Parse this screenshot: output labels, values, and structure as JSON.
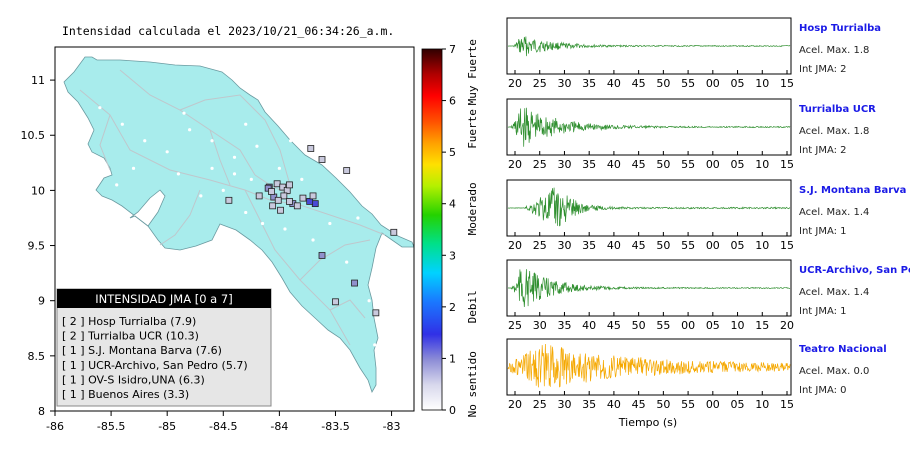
{
  "chart_data": [
    {
      "type": "map",
      "title": "Intensidad calculada el 2023/10/21_06:34:26_a.m.",
      "x_ticks": [
        "-86",
        "-85.5",
        "-85",
        "-84.5",
        "-84",
        "-83.5",
        "-83"
      ],
      "xlim": [
        -86,
        -82.8
      ],
      "y_ticks": [
        "8",
        "8.5",
        "9",
        "9.5",
        "10",
        "10.5",
        "11"
      ],
      "ylim": [
        8,
        11.3
      ],
      "colorbar": {
        "ticks": [
          "0",
          "1",
          "2",
          "3",
          "4",
          "5",
          "6",
          "7"
        ],
        "range": [
          0,
          7
        ],
        "labels": [
          {
            "text": "No sentido",
            "from": 0,
            "to": 1
          },
          {
            "text": "Debil",
            "from": 1,
            "to": 3
          },
          {
            "text": "Moderado",
            "from": 3,
            "to": 4.8
          },
          {
            "text": "Fuerte",
            "from": 4.8,
            "to": 6.1
          },
          {
            "text": "Muy Fuerte",
            "from": 6.1,
            "to": 7
          }
        ]
      },
      "legend": {
        "title": "INTENSIDAD JMA [0 a 7]",
        "placement": "bottom-left",
        "entries": [
          "[ 2 ]  Hosp Turrialba (7.9)",
          "[ 2 ]  Turrialba UCR (10.3)",
          "[ 1 ]  S.J. Montana Barva (7.6)",
          "[ 1 ]  UCR-Archivo, San Pedro (5.7)",
          "[ 1 ]  OV-S Isidro,UNA (6.3)",
          "[ 1 ]  Buenos Aires (3.3)"
        ]
      },
      "stations": [
        {
          "lon": -83.68,
          "lat": 9.88,
          "intensity": 2
        },
        {
          "lon": -83.73,
          "lat": 9.9,
          "intensity": 2
        },
        {
          "lon": -84.09,
          "lat": 10.03,
          "intensity": 1
        },
        {
          "lon": -84.05,
          "lat": 9.94,
          "intensity": 1
        },
        {
          "lon": -84.1,
          "lat": 10.02,
          "intensity": 1
        },
        {
          "lon": -83.33,
          "lat": 9.16,
          "intensity": 1
        },
        {
          "lon": -83.88,
          "lat": 9.88,
          "intensity": 1
        },
        {
          "lon": -83.62,
          "lat": 9.41,
          "intensity": 1
        },
        {
          "lon": -83.72,
          "lat": 10.38,
          "intensity": 0
        },
        {
          "lon": -83.62,
          "lat": 10.28,
          "intensity": 0
        },
        {
          "lon": -83.4,
          "lat": 10.18,
          "intensity": 0
        },
        {
          "lon": -84.45,
          "lat": 9.91,
          "intensity": 0
        },
        {
          "lon": -84.18,
          "lat": 9.95,
          "intensity": 0
        },
        {
          "lon": -84.07,
          "lat": 9.99,
          "intensity": 0
        },
        {
          "lon": -84.02,
          "lat": 10.06,
          "intensity": 0
        },
        {
          "lon": -83.97,
          "lat": 10.03,
          "intensity": 0
        },
        {
          "lon": -83.93,
          "lat": 10.0,
          "intensity": 0
        },
        {
          "lon": -83.96,
          "lat": 9.95,
          "intensity": 0
        },
        {
          "lon": -83.91,
          "lat": 9.9,
          "intensity": 0
        },
        {
          "lon": -83.84,
          "lat": 9.86,
          "intensity": 0
        },
        {
          "lon": -84.06,
          "lat": 9.86,
          "intensity": 0
        },
        {
          "lon": -83.99,
          "lat": 9.82,
          "intensity": 0
        },
        {
          "lon": -84.01,
          "lat": 9.91,
          "intensity": 0
        },
        {
          "lon": -83.79,
          "lat": 9.93,
          "intensity": 0
        },
        {
          "lon": -83.7,
          "lat": 9.95,
          "intensity": 0
        },
        {
          "lon": -82.98,
          "lat": 9.62,
          "intensity": 0
        },
        {
          "lon": -83.5,
          "lat": 8.99,
          "intensity": 0
        },
        {
          "lon": -83.14,
          "lat": 8.89,
          "intensity": 0
        },
        {
          "lon": -83.91,
          "lat": 10.05,
          "intensity": 0
        }
      ]
    },
    {
      "type": "line",
      "xlabel": "Tiempo (s)",
      "panels": [
        {
          "station": "Hosp Turrialba",
          "accel": "Acel. Max. 1.8",
          "jma": "Int JMA: 2",
          "x_ticks": [
            "20",
            "25",
            "30",
            "35",
            "40",
            "45",
            "50",
            "55",
            "00",
            "05",
            "10",
            "15"
          ],
          "color": "#2f8f2f"
        },
        {
          "station": "Turrialba UCR",
          "accel": "Acel. Max. 1.8",
          "jma": "Int JMA: 2",
          "x_ticks": [
            "20",
            "25",
            "30",
            "35",
            "40",
            "45",
            "50",
            "55",
            "00",
            "05",
            "10",
            "15"
          ],
          "color": "#2f8f2f"
        },
        {
          "station": "S.J. Montana Barva",
          "accel": "Acel. Max. 1.4",
          "jma": "Int JMA: 1",
          "x_ticks": [
            "20",
            "25",
            "30",
            "35",
            "40",
            "45",
            "50",
            "55",
            "00",
            "05",
            "10",
            "15"
          ],
          "color": "#2f8f2f"
        },
        {
          "station": "UCR-Archivo, San Pedro",
          "accel": "Acel. Max. 1.4",
          "jma": "Int JMA: 1",
          "x_ticks": [
            "25",
            "30",
            "35",
            "40",
            "45",
            "50",
            "55",
            "00",
            "05",
            "10",
            "15",
            "20"
          ],
          "color": "#2f8f2f"
        },
        {
          "station": "Teatro Nacional",
          "accel": "Acel. Max. 0.0",
          "jma": "Int JMA: 0",
          "x_ticks": [
            "20",
            "25",
            "30",
            "35",
            "40",
            "45",
            "50",
            "55",
            "00",
            "05",
            "10",
            "15"
          ],
          "color": "#f5a800"
        }
      ]
    }
  ]
}
